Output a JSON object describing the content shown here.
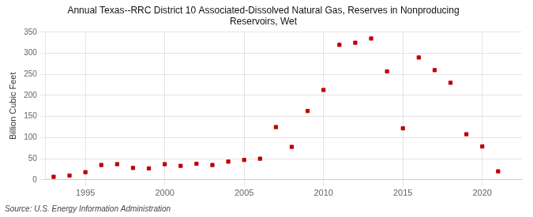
{
  "chart_data": {
    "type": "scatter",
    "title": "Annual Texas--RRC District 10 Associated-Dissolved Natural Gas, Reserves in Nonproducing\nReservoirs, Wet",
    "y_label": "Billion Cubic Feet",
    "source": "Source: U.S. Energy Information Administration",
    "x": [
      1993,
      1994,
      1995,
      1996,
      1997,
      1998,
      1999,
      2000,
      2001,
      2002,
      2003,
      2004,
      2005,
      2006,
      2007,
      2008,
      2009,
      2010,
      2011,
      2012,
      2013,
      2014,
      2015,
      2016,
      2017,
      2018,
      2019,
      2020,
      2021
    ],
    "values": [
      7,
      10,
      18,
      35,
      37,
      28,
      27,
      37,
      33,
      38,
      35,
      43,
      47,
      50,
      125,
      78,
      163,
      213,
      320,
      325,
      335,
      257,
      122,
      290,
      260,
      230,
      108,
      79,
      20
    ],
    "color": "#c00000",
    "marker": "square",
    "xlim": [
      1992.5,
      2022.5
    ],
    "xticks": [
      1995,
      2000,
      2005,
      2010,
      2015,
      2020
    ],
    "ylim": [
      0,
      350
    ],
    "yticks": [
      0,
      50,
      100,
      150,
      200,
      250,
      300,
      350
    ],
    "grid": true
  }
}
